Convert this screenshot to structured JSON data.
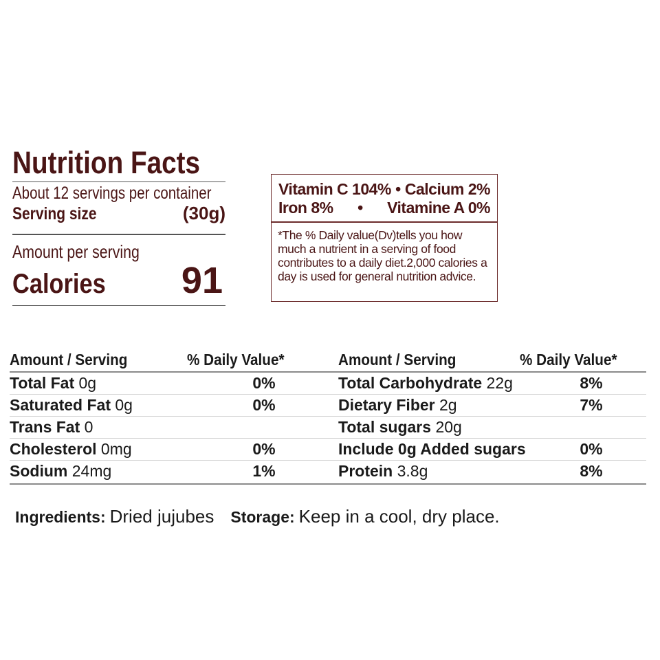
{
  "facts": {
    "title": "Nutrition Facts",
    "servings_per_container": "About 12 servings per container",
    "serving_size_label": "Serving size",
    "serving_size_value": "(30g)",
    "amount_per_serving": "Amount per serving",
    "calories_label": "Calories",
    "calories_value": "91"
  },
  "vitamins": {
    "line1_left": "Vitamin C 104%",
    "line1_bullet": "•",
    "line1_right": "Calcium 2%",
    "line2_left": "Iron 8%",
    "line2_bullet": "•",
    "line2_right": "Vitamine A 0%",
    "note": "*The % Daily value(Dv)tells you how much a nutrient in a serving of food contributes to a daily diet.2,000 calories a day is used for general nutrition advice."
  },
  "table": {
    "header_amount": "Amount / Serving",
    "header_dv": "% Daily Value*",
    "left_rows": [
      {
        "name": "Total Fat",
        "amount": "0g",
        "dv": "0%"
      },
      {
        "name": "Saturated Fat",
        "amount": "0g",
        "dv": "0%"
      },
      {
        "name": "Trans Fat",
        "amount": "0",
        "dv": ""
      },
      {
        "name": "Cholesterol",
        "amount": "0mg",
        "dv": "0%"
      },
      {
        "name": "Sodium",
        "amount": "24mg",
        "dv": "1%"
      }
    ],
    "right_rows": [
      {
        "name": "Total Carbohydrate",
        "amount": "22g",
        "dv": "8%"
      },
      {
        "name": "Dietary Fiber",
        "amount": "2g",
        "dv": "7%"
      },
      {
        "name": "Total sugars",
        "amount": "20g",
        "dv": ""
      },
      {
        "name": "Include 0g Added sugars",
        "amount": "",
        "dv": "0%"
      },
      {
        "name": "Protein",
        "amount": "3.8g",
        "dv": "8%"
      }
    ]
  },
  "footer": {
    "ingredients_label": "Ingredients:",
    "ingredients_value": "Dried jujubes",
    "storage_label": "Storage:",
    "storage_value": "Keep in a cool, dry place."
  },
  "colors": {
    "accent": "#4a1515",
    "text": "#1a1a1a",
    "box_border": "#6b2a2a"
  }
}
